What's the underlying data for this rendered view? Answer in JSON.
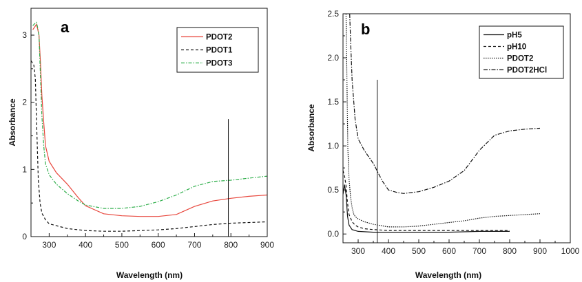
{
  "chart_data": [
    {
      "panel_label": "a",
      "type": "line",
      "xlabel": "Wavelength (nm)",
      "ylabel": "Absorbance",
      "xlim": [
        250,
        900
      ],
      "ylim": [
        0,
        3.4
      ],
      "xticks": [
        300,
        400,
        500,
        600,
        700,
        800,
        900
      ],
      "yticks": [
        0,
        1,
        2,
        3
      ],
      "legend_position": "top-right",
      "series": [
        {
          "name": "PDOT2",
          "color": "#e8463c",
          "dash": "solid",
          "x": [
            255,
            260,
            265,
            268,
            272,
            276,
            280,
            285,
            290,
            300,
            320,
            350,
            380,
            400,
            450,
            500,
            550,
            600,
            650,
            700,
            750,
            800,
            850,
            900
          ],
          "y": [
            3.08,
            3.12,
            3.16,
            3.1,
            3.0,
            2.6,
            2.1,
            1.7,
            1.35,
            1.12,
            0.95,
            0.78,
            0.58,
            0.46,
            0.34,
            0.31,
            0.3,
            0.3,
            0.33,
            0.45,
            0.53,
            0.57,
            0.6,
            0.62
          ]
        },
        {
          "name": "PDOT1",
          "color": "#111111",
          "dash": "4,3",
          "x": [
            250,
            255,
            258,
            262,
            266,
            270,
            275,
            280,
            290,
            300,
            350,
            400,
            450,
            500,
            550,
            600,
            650,
            700,
            750,
            800,
            850,
            900
          ],
          "y": [
            2.62,
            2.58,
            2.55,
            2.35,
            1.6,
            0.85,
            0.5,
            0.35,
            0.25,
            0.19,
            0.12,
            0.09,
            0.08,
            0.08,
            0.09,
            0.1,
            0.12,
            0.15,
            0.18,
            0.2,
            0.21,
            0.22
          ]
        },
        {
          "name": "PDOT3",
          "color": "#2eae4a",
          "dash": "5,2,1.5,2",
          "x": [
            255,
            260,
            265,
            268,
            272,
            276,
            280,
            285,
            290,
            300,
            320,
            350,
            380,
            400,
            450,
            500,
            550,
            600,
            650,
            700,
            750,
            800,
            850,
            900
          ],
          "y": [
            3.14,
            3.17,
            3.19,
            3.12,
            3.0,
            2.4,
            1.8,
            1.35,
            1.08,
            0.92,
            0.78,
            0.64,
            0.53,
            0.47,
            0.42,
            0.42,
            0.45,
            0.52,
            0.62,
            0.75,
            0.82,
            0.84,
            0.87,
            0.9
          ]
        }
      ],
      "annotations": [
        {
          "type": "vline",
          "x": 793,
          "y_from": 0,
          "y_to": 1.75
        }
      ]
    },
    {
      "panel_label": "b",
      "type": "line",
      "xlabel": "Wavelength (nm)",
      "ylabel": "Absorbance",
      "xlim": [
        250,
        1000
      ],
      "ylim": [
        -0.1,
        2.5
      ],
      "xticks": [
        300,
        400,
        500,
        600,
        700,
        800,
        900,
        1000
      ],
      "yticks": [
        0.0,
        0.5,
        1.0,
        1.5,
        2.0,
        2.5
      ],
      "ytick_labels": [
        "0.0",
        "0.5",
        "1.0",
        "1.5",
        "2.0",
        "2.5"
      ],
      "legend_position": "top-right",
      "series": [
        {
          "name": "pH5",
          "color": "#111111",
          "dash": "solid",
          "x": [
            250,
            255,
            260,
            265,
            270,
            280,
            300,
            350,
            400,
            500,
            600,
            700,
            800
          ],
          "y": [
            0.45,
            0.56,
            0.45,
            0.2,
            0.1,
            0.05,
            0.03,
            0.02,
            0.02,
            0.02,
            0.02,
            0.03,
            0.03
          ]
        },
        {
          "name": "pH10",
          "color": "#111111",
          "dash": "4,3",
          "x": [
            250,
            255,
            260,
            265,
            270,
            280,
            290,
            300,
            320,
            350,
            400,
            500,
            600,
            700,
            800
          ],
          "y": [
            0.72,
            0.66,
            0.55,
            0.35,
            0.22,
            0.14,
            0.1,
            0.08,
            0.06,
            0.05,
            0.04,
            0.04,
            0.04,
            0.04,
            0.04
          ]
        },
        {
          "name": "PDOT2",
          "color": "#111111",
          "dash": "1.5,1.5",
          "x": [
            260,
            262,
            264,
            266,
            270,
            275,
            280,
            285,
            290,
            300,
            320,
            350,
            400,
            450,
            500,
            550,
            600,
            650,
            700,
            750,
            800,
            850,
            900
          ],
          "y": [
            2.5,
            2.0,
            1.45,
            0.98,
            0.62,
            0.42,
            0.3,
            0.23,
            0.2,
            0.17,
            0.14,
            0.11,
            0.08,
            0.08,
            0.09,
            0.11,
            0.13,
            0.15,
            0.18,
            0.2,
            0.21,
            0.22,
            0.23
          ]
        },
        {
          "name": "PDOT2HCl",
          "color": "#111111",
          "dash": "6,2,1.5,2",
          "x": [
            272,
            275,
            280,
            290,
            300,
            320,
            350,
            380,
            400,
            430,
            450,
            500,
            550,
            600,
            650,
            700,
            750,
            800,
            850,
            900
          ],
          "y": [
            2.5,
            2.2,
            1.75,
            1.3,
            1.08,
            0.95,
            0.8,
            0.6,
            0.5,
            0.47,
            0.46,
            0.48,
            0.53,
            0.6,
            0.72,
            0.95,
            1.12,
            1.17,
            1.19,
            1.2
          ]
        }
      ],
      "annotations": [
        {
          "type": "vline",
          "x": 363,
          "y_from": -0.1,
          "y_to": 1.75
        }
      ]
    }
  ]
}
